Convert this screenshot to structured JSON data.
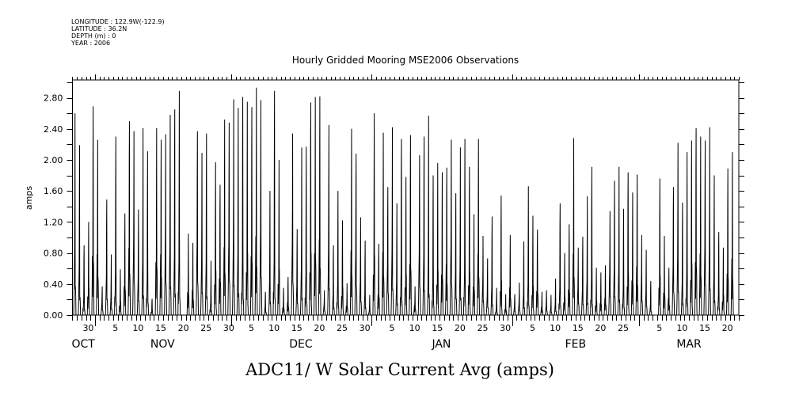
{
  "chart_data": {
    "type": "line",
    "title": "Hourly Gridded Mooring MSE2006 Observations",
    "xlabel": "ADC11/ W Solar Current Avg (amps)",
    "ylabel": "amps",
    "header": [
      "LONGITUDE : 122.9W(-122.9)",
      "LATITUDE : 36.2N",
      "DEPTH (m) : 0",
      "YEAR : 2006"
    ],
    "x_units": "days since 2006-10-27 00:00",
    "xlim": [
      0,
      147
    ],
    "ylim": [
      0,
      3.03
    ],
    "grid": false,
    "yticks": [
      {
        "v": 0.0,
        "label": "0.00"
      },
      {
        "v": 0.4,
        "label": "0.40"
      },
      {
        "v": 0.8,
        "label": "0.80"
      },
      {
        "v": 1.2,
        "label": "1.20"
      },
      {
        "v": 1.6,
        "label": "1.60"
      },
      {
        "v": 2.0,
        "label": "2.00"
      },
      {
        "v": 2.4,
        "label": "2.40"
      },
      {
        "v": 2.8,
        "label": "2.80"
      }
    ],
    "xticks": [
      {
        "day": 3,
        "label": "30"
      },
      {
        "day": 9,
        "label": "5"
      },
      {
        "day": 14,
        "label": "10"
      },
      {
        "day": 19,
        "label": "15"
      },
      {
        "day": 24,
        "label": "20"
      },
      {
        "day": 29,
        "label": "25"
      },
      {
        "day": 34,
        "label": "30"
      },
      {
        "day": 39,
        "label": "5"
      },
      {
        "day": 44,
        "label": "10"
      },
      {
        "day": 49,
        "label": "15"
      },
      {
        "day": 54,
        "label": "20"
      },
      {
        "day": 59,
        "label": "25"
      },
      {
        "day": 64,
        "label": "30"
      },
      {
        "day": 70,
        "label": "5"
      },
      {
        "day": 75,
        "label": "10"
      },
      {
        "day": 80,
        "label": "15"
      },
      {
        "day": 85,
        "label": "20"
      },
      {
        "day": 90,
        "label": "25"
      },
      {
        "day": 95,
        "label": "30"
      },
      {
        "day": 101,
        "label": "5"
      },
      {
        "day": 106,
        "label": "10"
      },
      {
        "day": 111,
        "label": "15"
      },
      {
        "day": 116,
        "label": "20"
      },
      {
        "day": 121,
        "label": "25"
      },
      {
        "day": 129,
        "label": "5"
      },
      {
        "day": 134,
        "label": "10"
      },
      {
        "day": 139,
        "label": "15"
      },
      {
        "day": 144,
        "label": "20"
      }
    ],
    "month_boundaries": [
      5,
      35,
      66,
      97,
      125
    ],
    "months": [
      {
        "day": 2.4,
        "label": "OCT"
      },
      {
        "day": 19.9,
        "label": "NOV"
      },
      {
        "day": 50.4,
        "label": "DEC"
      },
      {
        "day": 81.4,
        "label": "JAN"
      },
      {
        "day": 111,
        "label": "FEB"
      },
      {
        "day": 136,
        "label": "MAR"
      }
    ],
    "series": [
      {
        "name": "ADC11/ W Solar Current Avg (amps)",
        "daily_peak": [
          2.6,
          2.19,
          0.9,
          1.2,
          2.69,
          2.26,
          0.37,
          1.49,
          0.78,
          2.3,
          0.59,
          1.31,
          2.5,
          2.37,
          1.36,
          2.41,
          2.11,
          0.21,
          2.41,
          2.26,
          2.33,
          2.58,
          2.65,
          2.89,
          null,
          1.05,
          0.93,
          2.37,
          2.09,
          2.34,
          0.7,
          1.97,
          1.68,
          2.52,
          2.48,
          2.78,
          2.67,
          2.81,
          2.75,
          2.68,
          2.93,
          2.77,
          0.3,
          1.6,
          2.89,
          2.0,
          0.35,
          0.49,
          2.34,
          1.11,
          2.16,
          2.17,
          2.74,
          2.81,
          2.82,
          0.32,
          2.45,
          0.9,
          1.6,
          1.22,
          0.41,
          2.4,
          2.08,
          1.26,
          0.96,
          0.26,
          2.6,
          0.92,
          2.35,
          1.65,
          2.42,
          1.44,
          2.27,
          1.78,
          2.32,
          0.37,
          2.06,
          2.3,
          2.57,
          1.8,
          1.96,
          1.84,
          1.9,
          2.26,
          1.57,
          2.16,
          2.27,
          1.91,
          1.3,
          2.27,
          1.02,
          0.73,
          1.27,
          0.35,
          1.54,
          0.27,
          1.03,
          0.27,
          0.42,
          0.95,
          1.66,
          1.28,
          1.1,
          0.3,
          0.32,
          0.26,
          0.47,
          1.44,
          0.8,
          1.17,
          2.28,
          0.87,
          1.01,
          1.53,
          1.91,
          0.61,
          0.55,
          0.64,
          1.34,
          1.73,
          1.91,
          1.37,
          1.84,
          1.58,
          1.81,
          1.03,
          0.84,
          0.44,
          null,
          1.76,
          1.02,
          0.61,
          1.65,
          2.22,
          1.45,
          2.1,
          2.25,
          2.41,
          2.3,
          2.25,
          2.42,
          1.8,
          1.07,
          0.87,
          1.89,
          2.1
        ]
      }
    ]
  }
}
